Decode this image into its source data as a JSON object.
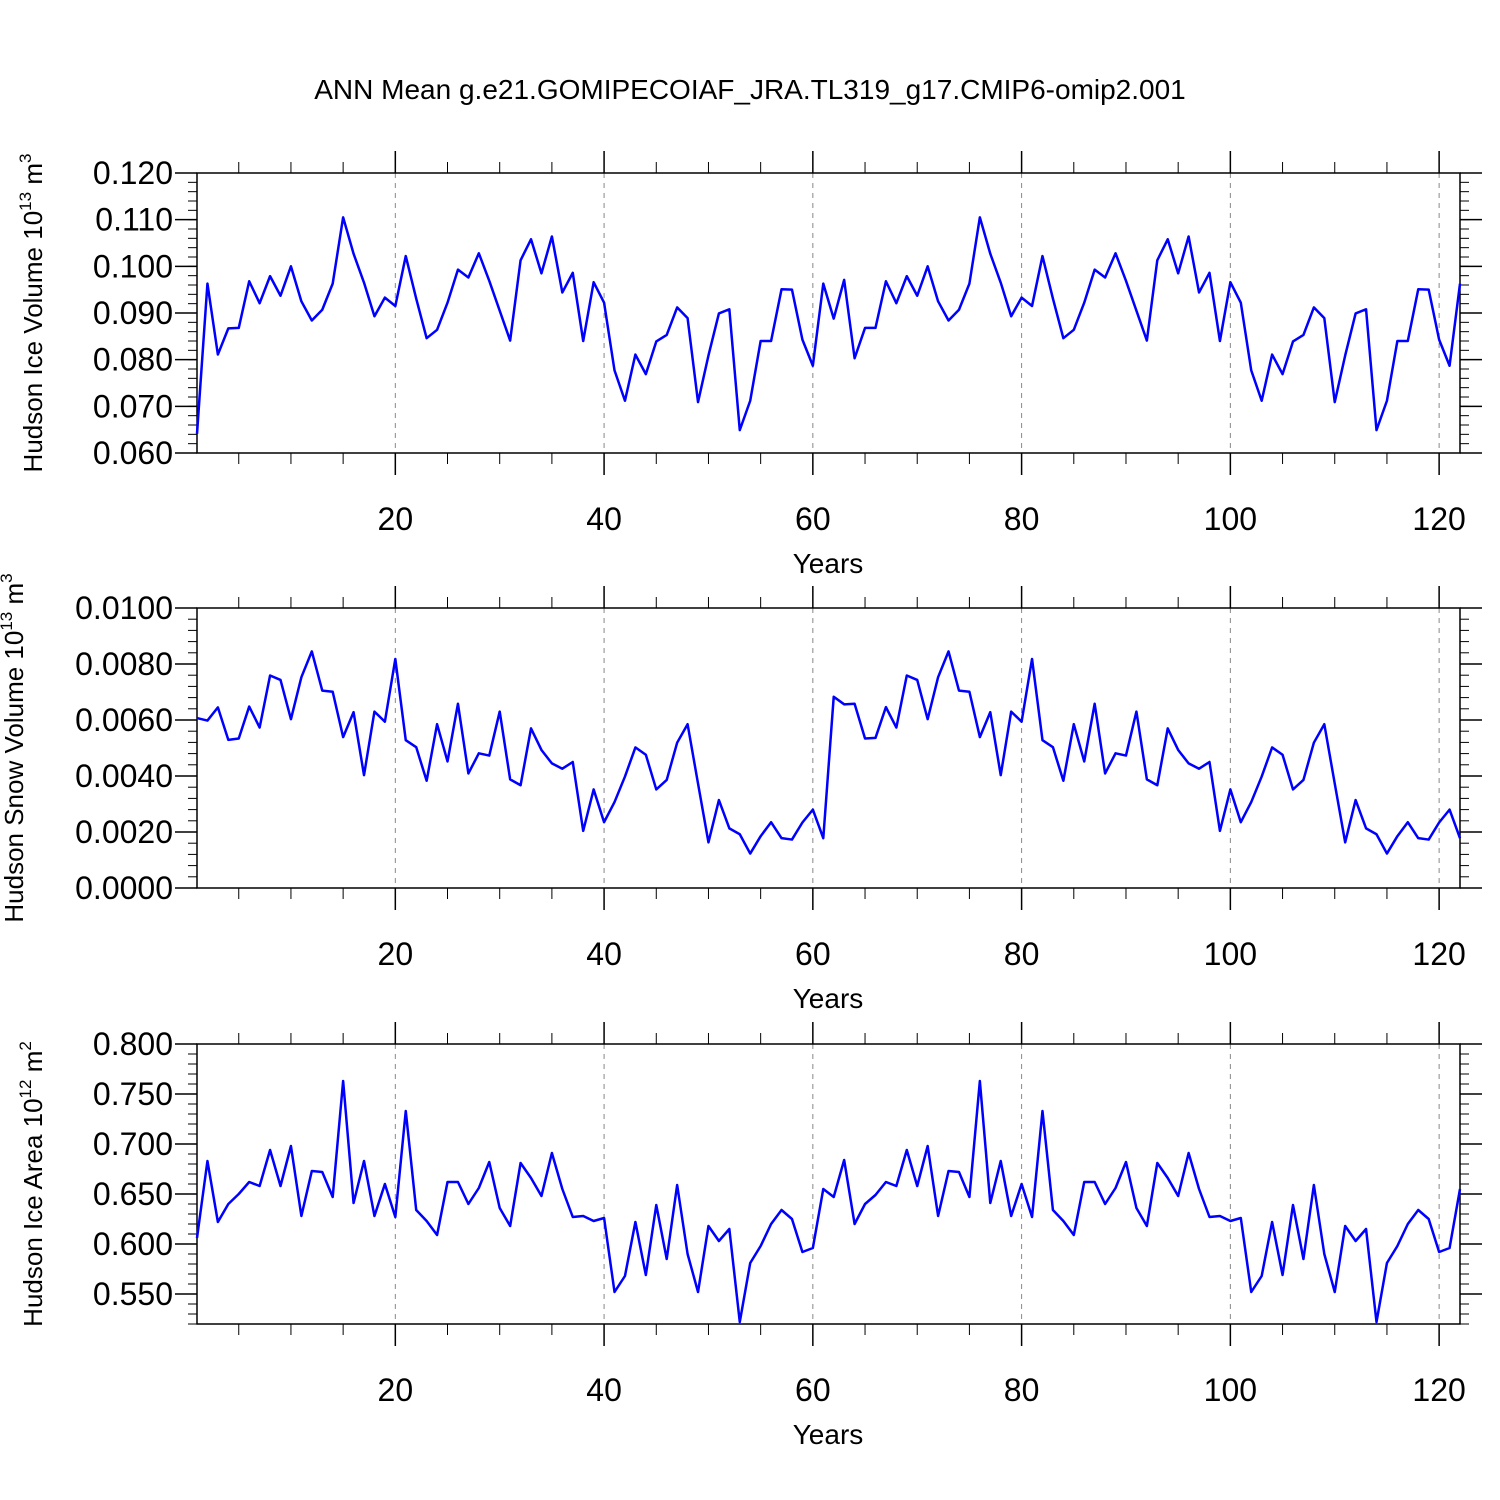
{
  "title": "ANN Mean g.e21.GOMIPECOIAF_JRA.TL319_g17.CMIP6-omip2.001",
  "colors": {
    "line": "#0000ff",
    "axis": "#000000",
    "grid": "#888888"
  },
  "chart_data": [
    {
      "type": "line",
      "ylabel": "Hudson Ice Volume 10",
      "ylabel_exp": "13",
      "ylabel_unit": " m",
      "ylabel_unit_exp": "3",
      "xlabel": "Years",
      "ylim": [
        0.06,
        0.12
      ],
      "xlim": [
        1,
        122
      ],
      "yticks": [
        "0.060",
        "0.070",
        "0.080",
        "0.090",
        "0.100",
        "0.110",
        "0.120"
      ],
      "xticks": [
        "20",
        "40",
        "60",
        "80",
        "100",
        "120"
      ],
      "grid": "vertical dashed",
      "series": [
        {
          "x_start": 1,
          "values": [
            0.0641,
            0.0963,
            0.0811,
            0.0867,
            0.0868,
            0.0968,
            0.0921,
            0.0979,
            0.0937,
            0.1,
            0.0925,
            0.0884,
            0.0907,
            0.0963,
            0.1105,
            0.1027,
            0.0965,
            0.0893,
            0.0933,
            0.0915,
            0.1022,
            0.0931,
            0.0846,
            0.0864,
            0.0922,
            0.0993,
            0.0976,
            0.1028,
            0.0969,
            0.0905,
            0.0841,
            0.1013,
            0.1058,
            0.0985,
            0.1064,
            0.0944,
            0.0986,
            0.084,
            0.0966,
            0.0922,
            0.0777,
            0.0712,
            0.0811,
            0.0769,
            0.0839,
            0.0853,
            0.0912,
            0.0889,
            0.0709,
            0.0809,
            0.0899,
            0.0908,
            0.0649,
            0.0712,
            0.084,
            0.084,
            0.0951,
            0.095,
            0.0843,
            0.0787,
            0.0963,
            0.0888,
            0.0971,
            0.0803,
            0.0868,
            0.0868,
            0.0968,
            0.0921,
            0.0979,
            0.0937,
            0.1,
            0.0925,
            0.0884,
            0.0907,
            0.0963,
            0.1105,
            0.1027,
            0.0965,
            0.0893,
            0.0933,
            0.0915,
            0.1022,
            0.0931,
            0.0846,
            0.0864,
            0.0922,
            0.0993,
            0.0976,
            0.1028,
            0.0969,
            0.0905,
            0.0841,
            0.1013,
            0.1058,
            0.0985,
            0.1064,
            0.0944,
            0.0986,
            0.084,
            0.0966,
            0.0922,
            0.0777,
            0.0712,
            0.0811,
            0.0769,
            0.0839,
            0.0853,
            0.0912,
            0.0889,
            0.0709,
            0.0809,
            0.0899,
            0.0908,
            0.0649,
            0.0712,
            0.084,
            0.084,
            0.0951,
            0.095,
            0.0843,
            0.0787,
            0.0963
          ]
        }
      ]
    },
    {
      "type": "line",
      "ylabel": "Hudson Snow Volume 10",
      "ylabel_exp": "13",
      "ylabel_unit": " m",
      "ylabel_unit_exp": "3",
      "xlabel": "Years",
      "ylim": [
        0.0,
        0.01
      ],
      "xlim": [
        1,
        122
      ],
      "yticks": [
        "0.0000",
        "0.0020",
        "0.0040",
        "0.0060",
        "0.0080",
        "0.0100"
      ],
      "xticks": [
        "20",
        "40",
        "60",
        "80",
        "100",
        "120"
      ],
      "grid": "vertical dashed",
      "series": [
        {
          "x_start": 1,
          "values": [
            0.00607,
            0.00598,
            0.00645,
            0.00529,
            0.00534,
            0.00648,
            0.00573,
            0.00759,
            0.00743,
            0.00603,
            0.00753,
            0.00845,
            0.00705,
            0.00701,
            0.00539,
            0.00628,
            0.00403,
            0.0063,
            0.00594,
            0.00818,
            0.00528,
            0.00503,
            0.00383,
            0.00585,
            0.00452,
            0.00658,
            0.00409,
            0.00481,
            0.00473,
            0.0063,
            0.00388,
            0.00367,
            0.0057,
            0.00493,
            0.00445,
            0.00426,
            0.0045,
            0.00204,
            0.00352,
            0.00235,
            0.00307,
            0.00398,
            0.00502,
            0.00476,
            0.00352,
            0.00386,
            0.00519,
            0.00585,
            0.00373,
            0.00163,
            0.00314,
            0.00213,
            0.00192,
            0.00123,
            0.00185,
            0.00235,
            0.00178,
            0.00173,
            0.00234,
            0.0028,
            0.00178,
            0.00683,
            0.00656,
            0.00658,
            0.00534,
            0.00536,
            0.00646,
            0.00573,
            0.00759,
            0.00743,
            0.00603,
            0.00753,
            0.00845,
            0.00705,
            0.00701,
            0.00539,
            0.00628,
            0.00403,
            0.0063,
            0.00594,
            0.00818,
            0.00528,
            0.00503,
            0.00383,
            0.00585,
            0.00452,
            0.00658,
            0.00409,
            0.00481,
            0.00473,
            0.0063,
            0.00388,
            0.00367,
            0.0057,
            0.00493,
            0.00445,
            0.00426,
            0.0045,
            0.00204,
            0.00352,
            0.00235,
            0.00307,
            0.00398,
            0.00502,
            0.00476,
            0.00352,
            0.00386,
            0.00519,
            0.00585,
            0.00373,
            0.00163,
            0.00314,
            0.00213,
            0.00192,
            0.00123,
            0.00185,
            0.00235,
            0.00178,
            0.00173,
            0.00234,
            0.0028,
            0.00178
          ]
        }
      ]
    },
    {
      "type": "line",
      "ylabel": "Hudson Ice Area 10",
      "ylabel_exp": "12",
      "ylabel_unit": " m",
      "ylabel_unit_exp": "2",
      "xlabel": "Years",
      "ylim": [
        0.52,
        0.8
      ],
      "xlim": [
        1,
        122
      ],
      "yticks": [
        "0.550",
        "0.600",
        "0.650",
        "0.700",
        "0.750",
        "0.800"
      ],
      "xticks": [
        "20",
        "40",
        "60",
        "80",
        "100",
        "120"
      ],
      "grid": "vertical dashed",
      "series": [
        {
          "x_start": 1,
          "values": [
            0.606,
            0.683,
            0.622,
            0.64,
            0.65,
            0.662,
            0.658,
            0.694,
            0.658,
            0.698,
            0.628,
            0.673,
            0.672,
            0.647,
            0.763,
            0.641,
            0.683,
            0.628,
            0.66,
            0.627,
            0.733,
            0.634,
            0.623,
            0.609,
            0.662,
            0.662,
            0.64,
            0.656,
            0.682,
            0.636,
            0.618,
            0.681,
            0.666,
            0.648,
            0.691,
            0.655,
            0.627,
            0.628,
            0.623,
            0.626,
            0.552,
            0.568,
            0.622,
            0.569,
            0.639,
            0.585,
            0.659,
            0.59,
            0.552,
            0.618,
            0.603,
            0.615,
            0.522,
            0.581,
            0.598,
            0.62,
            0.634,
            0.625,
            0.592,
            0.596,
            0.655,
            0.647,
            0.684,
            0.62,
            0.64,
            0.649,
            0.662,
            0.658,
            0.694,
            0.658,
            0.698,
            0.628,
            0.673,
            0.672,
            0.647,
            0.763,
            0.641,
            0.683,
            0.628,
            0.66,
            0.627,
            0.733,
            0.634,
            0.623,
            0.609,
            0.662,
            0.662,
            0.64,
            0.656,
            0.682,
            0.636,
            0.618,
            0.681,
            0.666,
            0.648,
            0.691,
            0.655,
            0.627,
            0.628,
            0.623,
            0.626,
            0.552,
            0.568,
            0.622,
            0.569,
            0.639,
            0.585,
            0.659,
            0.59,
            0.552,
            0.618,
            0.603,
            0.615,
            0.522,
            0.581,
            0.598,
            0.62,
            0.634,
            0.625,
            0.592,
            0.596,
            0.655
          ]
        }
      ]
    }
  ]
}
